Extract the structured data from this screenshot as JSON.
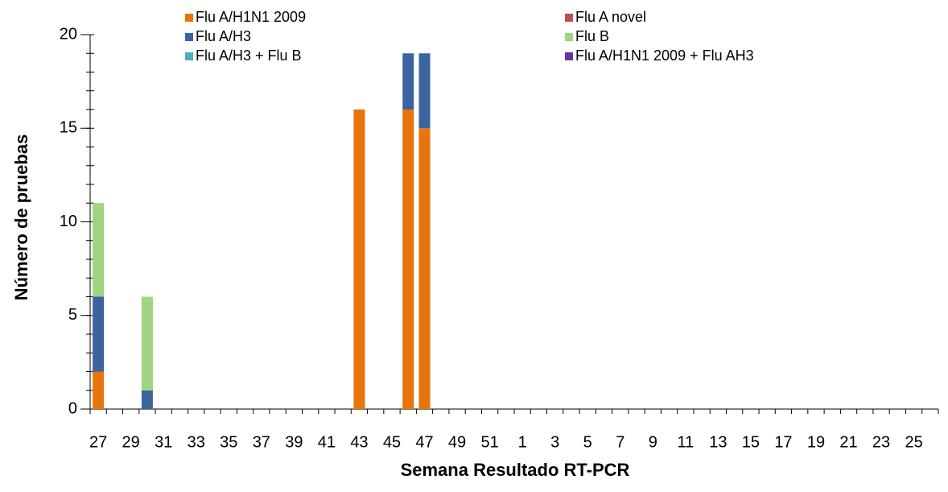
{
  "chart_data": {
    "type": "bar",
    "stacked": true,
    "xlabel": "Semana Resultado RT-PCR",
    "ylabel": "Número de pruebas",
    "categories": [
      "27",
      null,
      "29",
      null,
      "31",
      null,
      "33",
      null,
      "35",
      null,
      "37",
      null,
      "39",
      null,
      "41",
      null,
      "43",
      null,
      "45",
      null,
      "47",
      null,
      "49",
      null,
      "51",
      null,
      "1",
      null,
      "3",
      null,
      "5",
      null,
      "7",
      null,
      "9",
      null,
      "11",
      null,
      "13",
      null,
      "15",
      null,
      "17",
      null,
      "19",
      null,
      "21",
      null,
      "23",
      null,
      "25",
      null
    ],
    "series": [
      {
        "name": "Flu A/H1N1 2009",
        "color": "#e8740c",
        "values": [
          2,
          0,
          0,
          0,
          0,
          0,
          0,
          0,
          0,
          0,
          0,
          0,
          0,
          0,
          0,
          0,
          16,
          0,
          0,
          16,
          15,
          0,
          0,
          0,
          0,
          0,
          0,
          0,
          0,
          0,
          0,
          0,
          0,
          0,
          0,
          0,
          0,
          0,
          0,
          0,
          0,
          0,
          0,
          0,
          0,
          0,
          0,
          0,
          0,
          0,
          0,
          0
        ]
      },
      {
        "name": "Flu A novel",
        "color": "#c0504d",
        "values": [
          0,
          0,
          0,
          0,
          0,
          0,
          0,
          0,
          0,
          0,
          0,
          0,
          0,
          0,
          0,
          0,
          0,
          0,
          0,
          0,
          0,
          0,
          0,
          0,
          0,
          0,
          0,
          0,
          0,
          0,
          0,
          0,
          0,
          0,
          0,
          0,
          0,
          0,
          0,
          0,
          0,
          0,
          0,
          0,
          0,
          0,
          0,
          0,
          0,
          0,
          0,
          0
        ]
      },
      {
        "name": "Flu A/H3",
        "color": "#3a64a0",
        "values": [
          4,
          0,
          0,
          1,
          0,
          0,
          0,
          0,
          0,
          0,
          0,
          0,
          0,
          0,
          0,
          0,
          0,
          0,
          0,
          3,
          4,
          0,
          0,
          0,
          0,
          0,
          0,
          0,
          0,
          0,
          0,
          0,
          0,
          0,
          0,
          0,
          0,
          0,
          0,
          0,
          0,
          0,
          0,
          0,
          0,
          0,
          0,
          0,
          0,
          0,
          0,
          0
        ]
      },
      {
        "name": "Flu B",
        "color": "#9dd580",
        "values": [
          5,
          0,
          0,
          5,
          0,
          0,
          0,
          0,
          0,
          0,
          0,
          0,
          0,
          0,
          0,
          0,
          0,
          0,
          0,
          0,
          0,
          0,
          0,
          0,
          0,
          0,
          0,
          0,
          0,
          0,
          0,
          0,
          0,
          0,
          0,
          0,
          0,
          0,
          0,
          0,
          0,
          0,
          0,
          0,
          0,
          0,
          0,
          0,
          0,
          0,
          0,
          0
        ]
      },
      {
        "name": "Flu A/H3 + Flu B",
        "color": "#4bacc6",
        "values": [
          0,
          0,
          0,
          0,
          0,
          0,
          0,
          0,
          0,
          0,
          0,
          0,
          0,
          0,
          0,
          0,
          0,
          0,
          0,
          0,
          0,
          0,
          0,
          0,
          0,
          0,
          0,
          0,
          0,
          0,
          0,
          0,
          0,
          0,
          0,
          0,
          0,
          0,
          0,
          0,
          0,
          0,
          0,
          0,
          0,
          0,
          0,
          0,
          0,
          0,
          0,
          0
        ]
      },
      {
        "name": "Flu A/H1N1 2009 + Flu AH3",
        "color": "#7030a0",
        "values": [
          0,
          0,
          0,
          0,
          0,
          0,
          0,
          0,
          0,
          0,
          0,
          0,
          0,
          0,
          0,
          0,
          0,
          0,
          0,
          0,
          0,
          0,
          0,
          0,
          0,
          0,
          0,
          0,
          0,
          0,
          0,
          0,
          0,
          0,
          0,
          0,
          0,
          0,
          0,
          0,
          0,
          0,
          0,
          0,
          0,
          0,
          0,
          0,
          0,
          0,
          0,
          0
        ]
      }
    ],
    "ylim": [
      0,
      20
    ],
    "yticks": [
      0,
      5,
      10,
      15,
      20
    ],
    "grid": false
  }
}
